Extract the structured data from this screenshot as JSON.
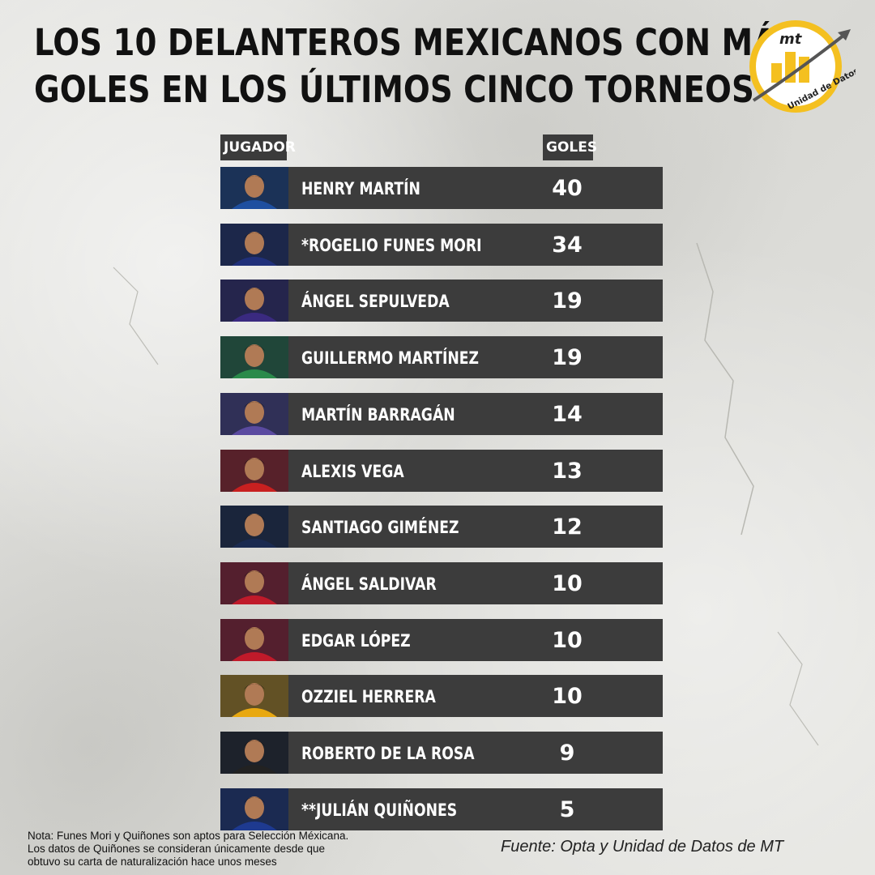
{
  "title_line1": "LOS 10 DELANTEROS MEXICANOS CON MÁS",
  "title_line2": "GOLES EN LOS ÚLTIMOS CINCO TORNEOS",
  "logo": {
    "text_top": "mt",
    "text_ring": "Unidad de Datos",
    "ring_color": "#f4c020"
  },
  "chart_data": {
    "type": "table",
    "columns": [
      "JUGADOR",
      "GOLES"
    ],
    "rows": [
      {
        "player": "HENRY MARTÍN",
        "goals": 40
      },
      {
        "player": "*ROGELIO FUNES MORI",
        "goals": 34
      },
      {
        "player": "ÁNGEL SEPULVEDA",
        "goals": 19
      },
      {
        "player": "GUILLERMO MARTÍNEZ",
        "goals": 19
      },
      {
        "player": "MARTÍN BARRAGÁN",
        "goals": 14
      },
      {
        "player": "ALEXIS VEGA",
        "goals": 13
      },
      {
        "player": "SANTIAGO GIMÉNEZ",
        "goals": 12
      },
      {
        "player": "ÁNGEL SALDIVAR",
        "goals": 10
      },
      {
        "player": "EDGAR LÓPEZ",
        "goals": 10
      },
      {
        "player": "OZZIEL HERRERA",
        "goals": 10
      },
      {
        "player": "ROBERTO DE LA ROSA",
        "goals": 9
      },
      {
        "player": "**JULIÁN QUIÑONES",
        "goals": 5
      }
    ]
  },
  "photo_kits": [
    "#1e4fa0",
    "#20307a",
    "#3a2a80",
    "#2a8a4a",
    "#5a4aa0",
    "#c82020",
    "#1a2a50",
    "#c01a2a",
    "#c01a2a",
    "#e8a810",
    "#222222",
    "#1e3a90"
  ],
  "note_lines": [
    "Nota: Funes Mori y Quiñones son aptos para Selección Méxicana.",
    "Los datos de Quiñones se consideran únicamente desde que",
    "obtuvo su carta de naturalización hace unos meses"
  ],
  "source": "Fuente: Opta y Unidad de Datos de MT"
}
